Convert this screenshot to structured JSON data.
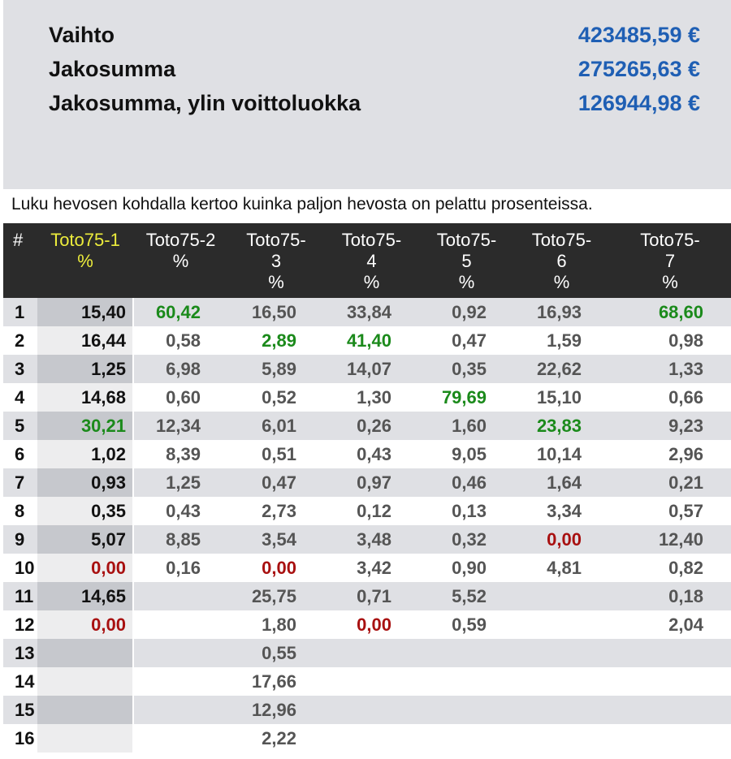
{
  "summary": [
    {
      "label": "Vaihto",
      "value": "423485,59 €"
    },
    {
      "label": "Jakosumma",
      "value": "275265,63 €"
    },
    {
      "label": "Jakosumma, ylin voittoluokka",
      "value": "126944,98 €"
    }
  ],
  "note": "Luku hevosen kohdalla kertoo kuinka paljon hevosta on pelattu prosenteissa.",
  "table": {
    "hash_header": "#",
    "columns": [
      {
        "line1": "Toto75-1",
        "line2": "%",
        "line3": "",
        "active": true
      },
      {
        "line1": "Toto75-2",
        "line2": "%",
        "line3": "",
        "active": false
      },
      {
        "line1": "Toto75-",
        "line2": "3",
        "line3": "%",
        "active": false
      },
      {
        "line1": "Toto75-",
        "line2": "4",
        "line3": "%",
        "active": false
      },
      {
        "line1": "Toto75-",
        "line2": "5",
        "line3": "%",
        "active": false
      },
      {
        "line1": "Toto75-",
        "line2": "6",
        "line3": "%",
        "active": false
      },
      {
        "line1": "Toto75-",
        "line2": "7",
        "line3": "%",
        "active": false
      }
    ],
    "rows": [
      {
        "num": "1",
        "values": [
          "15,40",
          "60,42",
          "16,50",
          "33,84",
          "0,92",
          "16,93",
          "68,60"
        ]
      },
      {
        "num": "2",
        "values": [
          "16,44",
          "0,58",
          "2,89",
          "41,40",
          "0,47",
          "1,59",
          "0,98"
        ]
      },
      {
        "num": "3",
        "values": [
          "1,25",
          "6,98",
          "5,89",
          "14,07",
          "0,35",
          "22,62",
          "1,33"
        ]
      },
      {
        "num": "4",
        "values": [
          "14,68",
          "0,60",
          "0,52",
          "1,30",
          "79,69",
          "15,10",
          "0,66"
        ]
      },
      {
        "num": "5",
        "values": [
          "30,21",
          "12,34",
          "6,01",
          "0,26",
          "1,60",
          "23,83",
          "9,23"
        ]
      },
      {
        "num": "6",
        "values": [
          "1,02",
          "8,39",
          "0,51",
          "0,43",
          "9,05",
          "10,14",
          "2,96"
        ]
      },
      {
        "num": "7",
        "values": [
          "0,93",
          "1,25",
          "0,47",
          "0,97",
          "0,46",
          "1,64",
          "0,21"
        ]
      },
      {
        "num": "8",
        "values": [
          "0,35",
          "0,43",
          "2,73",
          "0,12",
          "0,13",
          "3,34",
          "0,57"
        ]
      },
      {
        "num": "9",
        "values": [
          "5,07",
          "8,85",
          "3,54",
          "3,48",
          "0,32",
          "0,00",
          "12,40"
        ]
      },
      {
        "num": "10",
        "values": [
          "0,00",
          "0,16",
          "0,00",
          "3,42",
          "0,90",
          "4,81",
          "0,82"
        ]
      },
      {
        "num": "11",
        "values": [
          "14,65",
          "",
          "25,75",
          "0,71",
          "5,52",
          "",
          "0,18"
        ]
      },
      {
        "num": "12",
        "values": [
          "0,00",
          "",
          "1,80",
          "0,00",
          "0,59",
          "",
          "2,04"
        ]
      },
      {
        "num": "13",
        "values": [
          "",
          "",
          "0,55",
          "",
          "",
          "",
          ""
        ]
      },
      {
        "num": "14",
        "values": [
          "",
          "",
          "17,66",
          "",
          "",
          "",
          ""
        ]
      },
      {
        "num": "15",
        "values": [
          "",
          "",
          "12,96",
          "",
          "",
          "",
          ""
        ]
      },
      {
        "num": "16",
        "values": [
          "",
          "",
          "2,22",
          "",
          "",
          "",
          ""
        ]
      }
    ],
    "winners": [
      "5",
      "1",
      "2",
      "2",
      "4",
      "5",
      "1"
    ]
  },
  "colors": {
    "summary_value": "#1f5fb4",
    "header_bg": "#2b2b2b",
    "active_header": "#ecec3c",
    "winner": "#1b8a1b",
    "zero": "#a81010"
  }
}
